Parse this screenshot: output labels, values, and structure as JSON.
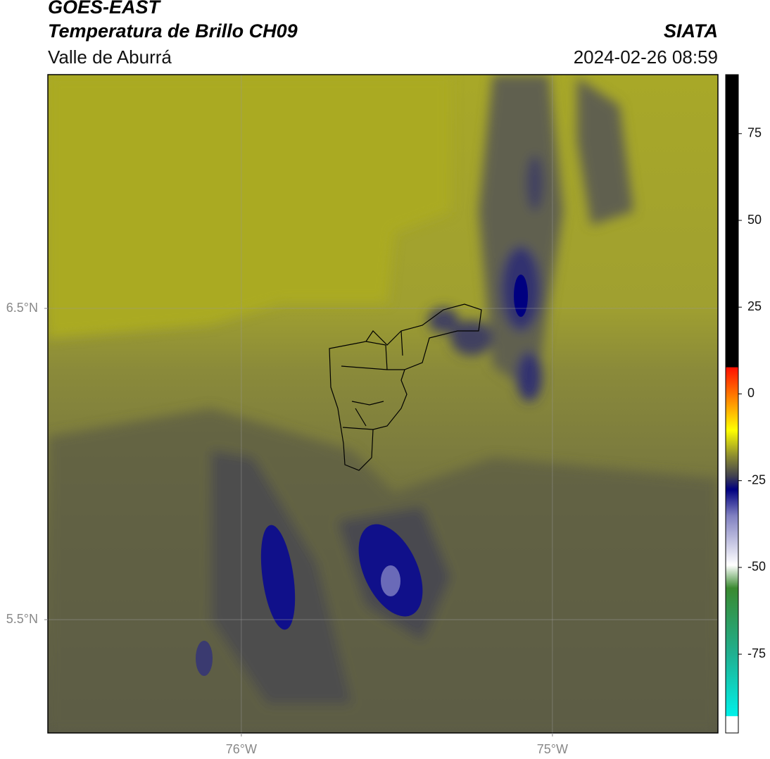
{
  "header": {
    "title": "GOES-EAST",
    "subtitle": "Temperatura de Brillo CH09",
    "region": "Valle de Aburrá",
    "source": "SIATA",
    "datetime": "2024-02-26 08:59"
  },
  "map": {
    "xlim": [
      -76.622,
      -74.468
    ],
    "ylim": [
      5.136,
      7.251
    ],
    "xticks": [
      {
        "value": -76,
        "label": "76°W"
      },
      {
        "value": -75,
        "label": "75°W"
      }
    ],
    "yticks": [
      {
        "value": 6.5,
        "label": "6.5°N"
      },
      {
        "value": 5.5,
        "label": "5.5°N"
      }
    ],
    "grid": true
  },
  "colorbar": {
    "lim": [
      -97.7,
      92
    ],
    "ticks": [
      -75,
      -50,
      -25,
      0,
      25,
      50,
      75
    ]
  }
}
